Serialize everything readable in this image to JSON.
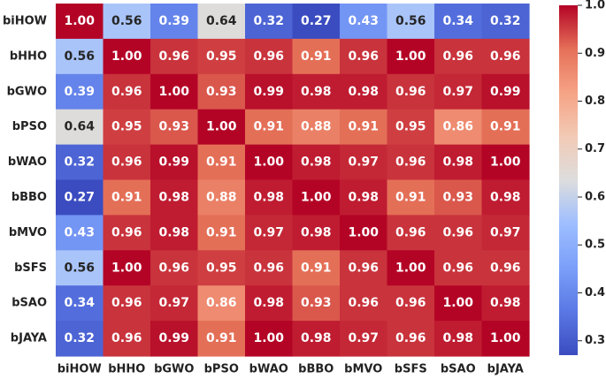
{
  "chart_data": {
    "type": "heatmap",
    "title": "",
    "xlabel": "",
    "ylabel": "",
    "x_labels": [
      "biHOW",
      "bHHO",
      "bGWO",
      "bPSO",
      "bWAO",
      "bBBO",
      "bMVO",
      "bSFS",
      "bSAO",
      "bJAYA"
    ],
    "y_labels": [
      "biHOW",
      "bHHO",
      "bGWO",
      "bPSO",
      "bWAO",
      "bBBO",
      "bMVO",
      "bSFS",
      "bSAO",
      "bJAYA"
    ],
    "values": [
      [
        1.0,
        0.56,
        0.39,
        0.64,
        0.32,
        0.27,
        0.43,
        0.56,
        0.34,
        0.32
      ],
      [
        0.56,
        1.0,
        0.96,
        0.95,
        0.96,
        0.91,
        0.96,
        1.0,
        0.96,
        0.96
      ],
      [
        0.39,
        0.96,
        1.0,
        0.93,
        0.99,
        0.98,
        0.98,
        0.96,
        0.97,
        0.99
      ],
      [
        0.64,
        0.95,
        0.93,
        1.0,
        0.91,
        0.88,
        0.91,
        0.95,
        0.86,
        0.91
      ],
      [
        0.32,
        0.96,
        0.99,
        0.91,
        1.0,
        0.98,
        0.97,
        0.96,
        0.98,
        1.0
      ],
      [
        0.27,
        0.91,
        0.98,
        0.88,
        0.98,
        1.0,
        0.98,
        0.91,
        0.93,
        0.98
      ],
      [
        0.43,
        0.96,
        0.98,
        0.91,
        0.97,
        0.98,
        1.0,
        0.96,
        0.96,
        0.97
      ],
      [
        0.56,
        1.0,
        0.96,
        0.95,
        0.96,
        0.91,
        0.96,
        1.0,
        0.96,
        0.96
      ],
      [
        0.34,
        0.96,
        0.97,
        0.86,
        0.98,
        0.93,
        0.96,
        0.96,
        1.0,
        0.98
      ],
      [
        0.32,
        0.96,
        0.99,
        0.91,
        1.0,
        0.98,
        0.97,
        0.96,
        0.98,
        1.0
      ]
    ],
    "value_format": "2 decimals",
    "colormap": "coolwarm",
    "vmin": 0.27,
    "vmax": 1.0,
    "colorbar_ticks": [
      0.3,
      0.4,
      0.5,
      0.6,
      0.7,
      0.8,
      0.9,
      1.0
    ],
    "colorbar_tick_labels": [
      "0.3",
      "0.4",
      "0.5",
      "0.6",
      "0.7",
      "0.8",
      "0.9",
      "1.0"
    ],
    "grid": false,
    "colorbar_position": "right"
  }
}
